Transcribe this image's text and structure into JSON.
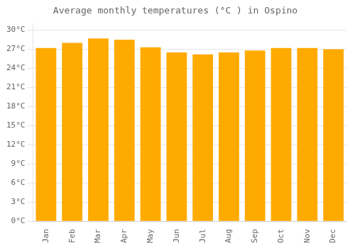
{
  "chart_data": {
    "type": "bar",
    "title": "Average monthly temperatures (°C ) in Ospino",
    "categories": [
      "Jan",
      "Feb",
      "Mar",
      "Apr",
      "May",
      "Jun",
      "Jul",
      "Aug",
      "Sep",
      "Oct",
      "Nov",
      "Dec"
    ],
    "values": [
      27.2,
      28.0,
      28.7,
      28.5,
      27.3,
      26.5,
      26.2,
      26.5,
      26.8,
      27.2,
      27.2,
      27.0
    ],
    "color": "#FFAA00",
    "ylim": [
      0,
      31
    ],
    "yticks": [
      {
        "value": 0,
        "label": "0°C"
      },
      {
        "value": 3,
        "label": "3°C"
      },
      {
        "value": 6,
        "label": "6°C"
      },
      {
        "value": 9,
        "label": "9°C"
      },
      {
        "value": 12,
        "label": "12°C"
      },
      {
        "value": 15,
        "label": "15°C"
      },
      {
        "value": 18,
        "label": "18°C"
      },
      {
        "value": 21,
        "label": "21°C"
      },
      {
        "value": 24,
        "label": "24°C"
      },
      {
        "value": 27,
        "label": "27°C"
      },
      {
        "value": 30,
        "label": "30°C"
      }
    ],
    "grid": true
  }
}
